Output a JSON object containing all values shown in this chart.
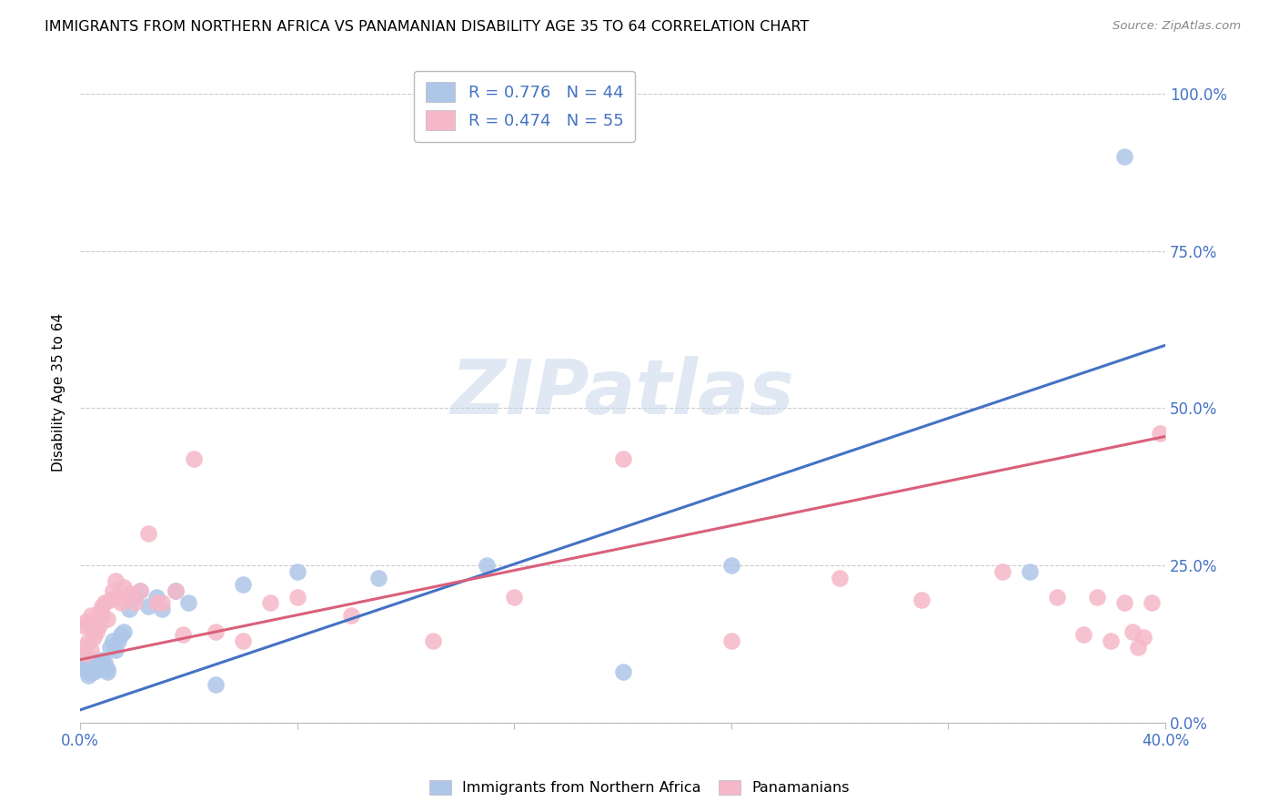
{
  "title": "IMMIGRANTS FROM NORTHERN AFRICA VS PANAMANIAN DISABILITY AGE 35 TO 64 CORRELATION CHART",
  "source": "Source: ZipAtlas.com",
  "ylabel": "Disability Age 35 to 64",
  "xlim": [
    0.0,
    0.4
  ],
  "ylim": [
    0.0,
    1.05
  ],
  "ytick_labels": [
    "0.0%",
    "25.0%",
    "50.0%",
    "75.0%",
    "100.0%"
  ],
  "ytick_vals": [
    0.0,
    0.25,
    0.5,
    0.75,
    1.0
  ],
  "xtick_vals": [
    0.0,
    0.08,
    0.16,
    0.24,
    0.32,
    0.4
  ],
  "blue_R": 0.776,
  "blue_N": 44,
  "pink_R": 0.474,
  "pink_N": 55,
  "blue_color": "#aec6e8",
  "pink_color": "#f5b8c8",
  "blue_line_color": "#4472c4",
  "pink_line_color": "#d9607a",
  "watermark_text": "ZIPatlas",
  "legend_label_blue": "Immigrants from Northern Africa",
  "legend_label_pink": "Panamanians",
  "blue_line_x0": 0.0,
  "blue_line_y0": 0.02,
  "blue_line_x1": 0.4,
  "blue_line_y1": 0.6,
  "pink_line_x0": 0.0,
  "pink_line_y0": 0.1,
  "pink_line_x1": 0.4,
  "pink_line_y1": 0.455,
  "blue_x": [
    0.001,
    0.002,
    0.002,
    0.003,
    0.003,
    0.003,
    0.004,
    0.004,
    0.004,
    0.005,
    0.005,
    0.005,
    0.006,
    0.006,
    0.007,
    0.007,
    0.008,
    0.008,
    0.009,
    0.01,
    0.01,
    0.011,
    0.012,
    0.013,
    0.014,
    0.015,
    0.016,
    0.018,
    0.02,
    0.022,
    0.025,
    0.028,
    0.03,
    0.035,
    0.04,
    0.05,
    0.06,
    0.08,
    0.11,
    0.15,
    0.2,
    0.24,
    0.35,
    0.385
  ],
  "blue_y": [
    0.1,
    0.09,
    0.085,
    0.095,
    0.075,
    0.08,
    0.085,
    0.1,
    0.08,
    0.09,
    0.08,
    0.095,
    0.085,
    0.1,
    0.09,
    0.085,
    0.1,
    0.085,
    0.095,
    0.08,
    0.085,
    0.12,
    0.13,
    0.115,
    0.13,
    0.14,
    0.145,
    0.18,
    0.2,
    0.21,
    0.185,
    0.2,
    0.18,
    0.21,
    0.19,
    0.06,
    0.22,
    0.24,
    0.23,
    0.25,
    0.08,
    0.25,
    0.24,
    0.9
  ],
  "pink_x": [
    0.001,
    0.001,
    0.002,
    0.002,
    0.003,
    0.003,
    0.004,
    0.004,
    0.005,
    0.005,
    0.006,
    0.006,
    0.007,
    0.007,
    0.008,
    0.008,
    0.009,
    0.01,
    0.011,
    0.012,
    0.013,
    0.014,
    0.015,
    0.016,
    0.018,
    0.02,
    0.022,
    0.025,
    0.028,
    0.03,
    0.035,
    0.038,
    0.042,
    0.05,
    0.06,
    0.07,
    0.08,
    0.1,
    0.13,
    0.16,
    0.2,
    0.24,
    0.28,
    0.31,
    0.34,
    0.36,
    0.37,
    0.375,
    0.38,
    0.385,
    0.388,
    0.39,
    0.392,
    0.395,
    0.398
  ],
  "pink_y": [
    0.12,
    0.155,
    0.11,
    0.16,
    0.13,
    0.155,
    0.115,
    0.17,
    0.145,
    0.135,
    0.16,
    0.145,
    0.175,
    0.155,
    0.185,
    0.17,
    0.19,
    0.165,
    0.195,
    0.21,
    0.225,
    0.2,
    0.19,
    0.215,
    0.205,
    0.19,
    0.21,
    0.3,
    0.19,
    0.19,
    0.21,
    0.14,
    0.42,
    0.145,
    0.13,
    0.19,
    0.2,
    0.17,
    0.13,
    0.2,
    0.42,
    0.13,
    0.23,
    0.195,
    0.24,
    0.2,
    0.14,
    0.2,
    0.13,
    0.19,
    0.145,
    0.12,
    0.135,
    0.19,
    0.46
  ]
}
